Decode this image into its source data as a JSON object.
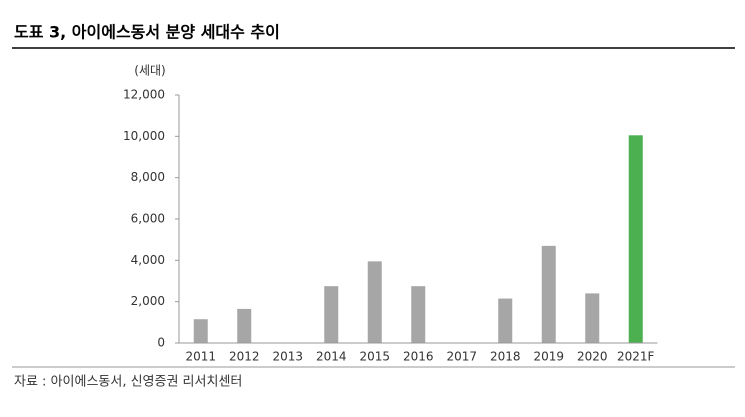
{
  "chart_data": {
    "type": "bar",
    "title": "도표 3, 아이에스동서 분양 세대수 추이",
    "y_unit": "(세대)",
    "source": "자료 : 아이에스동서, 신영증권 리서치센터",
    "categories": [
      "2011",
      "2012",
      "2013",
      "2014",
      "2015",
      "2016",
      "2017",
      "2018",
      "2019",
      "2020",
      "2021F"
    ],
    "values": [
      1150,
      1650,
      0,
      2750,
      3950,
      2750,
      0,
      2150,
      4700,
      2400,
      10050
    ],
    "colors": [
      "#a6a6a6",
      "#a6a6a6",
      "#a6a6a6",
      "#a6a6a6",
      "#a6a6a6",
      "#a6a6a6",
      "#a6a6a6",
      "#a6a6a6",
      "#a6a6a6",
      "#a6a6a6",
      "#4caf50"
    ],
    "ylim": [
      0,
      12000
    ],
    "yticks": [
      0,
      {
        "value": 2000,
        "label": "2,000"
      },
      {
        "value": 4000,
        "label": "4,000"
      },
      {
        "value": 6000,
        "label": "6,000"
      },
      {
        "value": 8000,
        "label": "8,000"
      },
      {
        "value": 10000,
        "label": "10,000"
      },
      {
        "value": 12000,
        "label": "12,000"
      }
    ],
    "grid": false
  }
}
